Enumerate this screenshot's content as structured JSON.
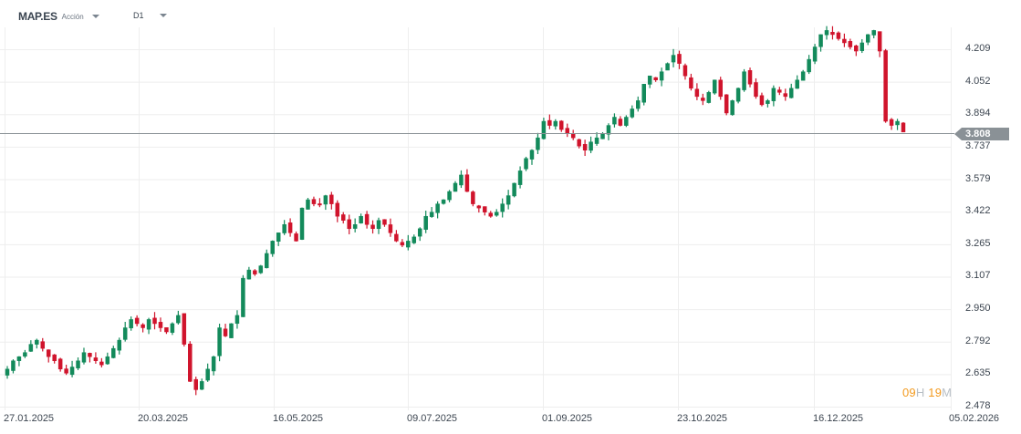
{
  "header": {
    "symbol": "MAP.ES",
    "instrument_type": "Acción",
    "timeframe": "D1"
  },
  "colors": {
    "bull": "#138a5b",
    "bear": "#d0142c",
    "grid": "#eeeeee",
    "price_line": "#8a9196",
    "price_tag": "#8a9196",
    "timer_number": "#f39a1e",
    "timer_unit": "#b8bfc6"
  },
  "current_price": {
    "label": "3.808",
    "value": 3.808
  },
  "timer": {
    "hours": "09",
    "hours_unit": "H",
    "minutes": "19",
    "minutes_unit": "M"
  },
  "chart_data": {
    "type": "candlestick",
    "title": "MAP.ES",
    "timeframe": "D1",
    "xlabel": "",
    "ylabel": "",
    "ylim": [
      2.478,
      4.366
    ],
    "y_ticks": [
      "4.209",
      "4.052",
      "3.894",
      "3.737",
      "3.579",
      "3.422",
      "3.265",
      "3.107",
      "2.950",
      "2.792",
      "2.635",
      "2.478"
    ],
    "x_ticks": [
      "27.01.2025",
      "20.03.2025",
      "16.05.2025",
      "09.07.2025",
      "01.09.2025",
      "23.10.2025",
      "16.12.2025",
      "05.02.2026"
    ],
    "grid": true,
    "last_price": 3.808,
    "close_series_approx": [
      2.66,
      2.7,
      2.72,
      2.74,
      2.78,
      2.8,
      2.76,
      2.72,
      2.7,
      2.66,
      2.64,
      2.67,
      2.7,
      2.74,
      2.72,
      2.7,
      2.68,
      2.72,
      2.76,
      2.8,
      2.86,
      2.9,
      2.88,
      2.86,
      2.9,
      2.88,
      2.86,
      2.84,
      2.88,
      2.92,
      2.78,
      2.6,
      2.56,
      2.6,
      2.66,
      2.72,
      2.86,
      2.82,
      2.88,
      2.92,
      3.1,
      3.14,
      3.12,
      3.16,
      3.22,
      3.28,
      3.32,
      3.36,
      3.32,
      3.28,
      3.44,
      3.48,
      3.46,
      3.46,
      3.5,
      3.46,
      3.4,
      3.38,
      3.34,
      3.36,
      3.4,
      3.36,
      3.34,
      3.38,
      3.36,
      3.32,
      3.28,
      3.26,
      3.28,
      3.3,
      3.34,
      3.4,
      3.42,
      3.46,
      3.48,
      3.52,
      3.56,
      3.6,
      3.52,
      3.46,
      3.44,
      3.42,
      3.4,
      3.42,
      3.46,
      3.5,
      3.56,
      3.62,
      3.68,
      3.72,
      3.78,
      3.86,
      3.84,
      3.86,
      3.82,
      3.8,
      3.78,
      3.74,
      3.72,
      3.76,
      3.78,
      3.8,
      3.84,
      3.88,
      3.84,
      3.88,
      3.92,
      3.96,
      4.04,
      4.08,
      4.06,
      4.1,
      4.14,
      4.18,
      4.14,
      4.08,
      4.02,
      3.98,
      3.96,
      4.0,
      4.06,
      3.98,
      3.9,
      3.96,
      4.02,
      4.1,
      4.04,
      3.98,
      3.94,
      3.96,
      4.02,
      4.0,
      3.98,
      4.02,
      4.06,
      4.1,
      4.16,
      4.22,
      4.28,
      4.3,
      4.28,
      4.26,
      4.24,
      4.22,
      4.2,
      4.24,
      4.28,
      4.3,
      4.2,
      3.86,
      3.84,
      3.86,
      3.808
    ]
  }
}
